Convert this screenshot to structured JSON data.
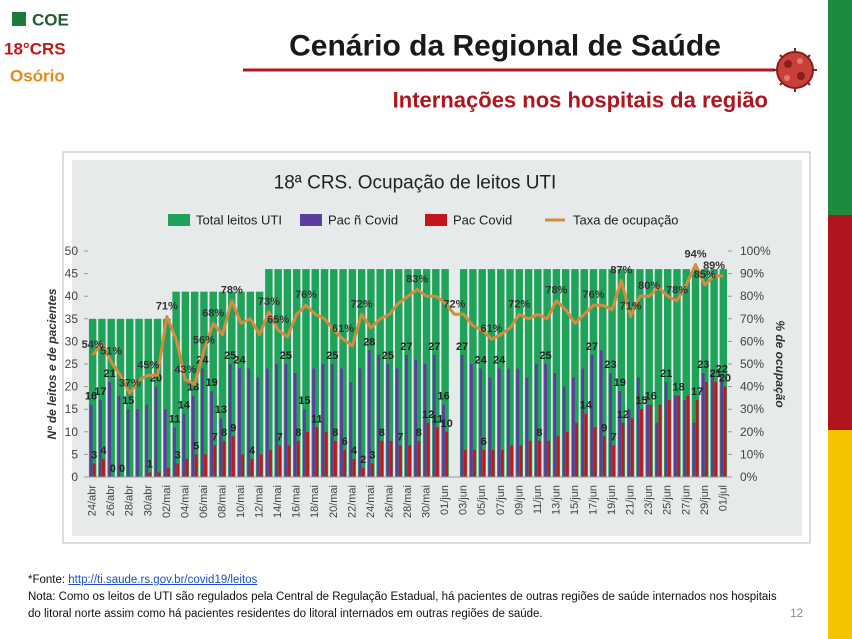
{
  "header": {
    "logo": [
      "COE",
      "18°CRS",
      "Osório"
    ],
    "title": "Cenário da Regional de Saúde",
    "subtitle": "Internações nos hospitais da região"
  },
  "chart_data": {
    "type": "bar",
    "title": "18ª CRS. Ocupação de leitos UTI",
    "y_label": "Nº de leitos e de pacientes",
    "y2_label": "% de ocupação",
    "categories": [
      "24/abr",
      null,
      "26/abr",
      null,
      "28/abr",
      null,
      "30/abr",
      null,
      "02/mai",
      null,
      "04/mai",
      null,
      "06/mai",
      null,
      "08/mai",
      null,
      "10/mai",
      null,
      "12/mai",
      null,
      "14/mai",
      null,
      "16/mai",
      null,
      "18/mai",
      null,
      "20/mai",
      null,
      "22/mai",
      null,
      "24/mai",
      null,
      "26/mai",
      null,
      "28/mai",
      null,
      "30/mai",
      null,
      "01/jun",
      null,
      "03/jun",
      null,
      "05/jun",
      null,
      "07/jun",
      null,
      "09/jun",
      null,
      "11/jun",
      null,
      "13/jun",
      null,
      "15/jun",
      null,
      "17/jun",
      null,
      "19/jun",
      null,
      "21/jun",
      null,
      "23/jun",
      null,
      "25/jun",
      null,
      "27/jun",
      null,
      "29/jun",
      null,
      "01/jul"
    ],
    "series": [
      {
        "name": "Total leitos UTI",
        "type": "bar",
        "color": "#1fa35a",
        "values": [
          35,
          35,
          35,
          35,
          35,
          35,
          35,
          35,
          35,
          41,
          41,
          41,
          41,
          41,
          41,
          41,
          41,
          41,
          41,
          46,
          46,
          46,
          46,
          46,
          46,
          46,
          46,
          46,
          46,
          46,
          46,
          46,
          46,
          46,
          46,
          46,
          46,
          46,
          46,
          null,
          46,
          46,
          46,
          46,
          46,
          46,
          46,
          46,
          46,
          46,
          46,
          46,
          46,
          46,
          46,
          46,
          46,
          46,
          46,
          46,
          46,
          46,
          46,
          46,
          46,
          46,
          46,
          46,
          46
        ]
      },
      {
        "name": "Pac ñ Covid",
        "type": "bar",
        "color": "#5b3d9e",
        "values": [
          16,
          17,
          21,
          18,
          15,
          15,
          16,
          20,
          15,
          11,
          14,
          18,
          24,
          19,
          13,
          25,
          24,
          24,
          22,
          24,
          25,
          25,
          23,
          15,
          24,
          25,
          25,
          24,
          21,
          24,
          28,
          27,
          25,
          24,
          27,
          26,
          25,
          27,
          16,
          null,
          27,
          25,
          24,
          22,
          24,
          24,
          24,
          22,
          25,
          25,
          23,
          20,
          22,
          24,
          27,
          28,
          23,
          19,
          15,
          22,
          16,
          12,
          21,
          18,
          17,
          12,
          23,
          23,
          22
        ],
        "value_labels": [
          "16",
          "17",
          "21",
          null,
          "15",
          null,
          null,
          "20",
          null,
          "11",
          "14",
          "18",
          "24",
          "19",
          "13",
          "25",
          "24",
          null,
          null,
          null,
          null,
          "25",
          null,
          "15",
          null,
          null,
          "25",
          null,
          null,
          null,
          "28",
          null,
          "25",
          null,
          "27",
          null,
          null,
          "27",
          "16",
          null,
          "27",
          null,
          "24",
          null,
          "24",
          null,
          null,
          null,
          null,
          "25",
          null,
          null,
          null,
          null,
          "27",
          null,
          "23",
          "19",
          null,
          null,
          null,
          null,
          "21",
          null,
          null,
          null,
          "23",
          null,
          "22"
        ]
      },
      {
        "name": "Pac Covid",
        "type": "bar",
        "color": "#c4161c",
        "values": [
          3,
          4,
          0,
          0,
          0,
          0,
          1,
          1,
          2,
          3,
          4,
          5,
          5,
          7,
          8,
          9,
          5,
          4,
          5,
          6,
          7,
          7,
          8,
          10,
          11,
          10,
          8,
          6,
          4,
          2,
          3,
          8,
          8,
          7,
          7,
          8,
          12,
          11,
          10,
          null,
          6,
          6,
          6,
          6,
          6,
          7,
          7,
          8,
          8,
          8,
          9,
          10,
          12,
          14,
          11,
          9,
          7,
          12,
          13,
          15,
          16,
          16,
          17,
          18,
          18,
          17,
          21,
          21,
          20
        ],
        "value_labels": [
          "3",
          "4",
          "0",
          "0",
          null,
          null,
          "1",
          null,
          null,
          "3",
          null,
          "5",
          null,
          "7",
          "8",
          "9",
          null,
          "4",
          null,
          null,
          "7",
          null,
          "8",
          null,
          "11",
          null,
          "8",
          "6",
          "4",
          "2",
          "3",
          "8",
          null,
          "7",
          null,
          "8",
          "12",
          "11",
          "10",
          null,
          null,
          null,
          "6",
          null,
          null,
          null,
          null,
          null,
          "8",
          null,
          null,
          null,
          null,
          "14",
          null,
          "9",
          "7",
          "12",
          null,
          "15",
          "16",
          null,
          null,
          "18",
          null,
          "17",
          null,
          "21",
          "20"
        ]
      },
      {
        "name": "Taxa de ocupação",
        "type": "line",
        "axis": "y2",
        "color": "#d38b3f",
        "values": [
          54,
          59,
          51,
          45,
          37,
          43,
          45,
          45,
          71,
          61,
          43,
          41,
          56,
          68,
          63,
          78,
          68,
          70,
          63,
          73,
          65,
          62,
          72,
          76,
          72,
          70,
          65,
          61,
          58,
          72,
          66,
          70,
          72,
          77,
          80,
          83,
          80,
          80,
          77,
          72,
          72,
          67,
          65,
          61,
          63,
          66,
          72,
          70,
          72,
          70,
          78,
          74,
          68,
          72,
          76,
          76,
          74,
          87,
          71,
          80,
          80,
          84,
          80,
          78,
          85,
          94,
          85,
          89,
          89
        ],
        "value_labels": [
          "54%",
          null,
          "51%",
          null,
          "37%",
          null,
          "45%",
          null,
          "71%",
          null,
          "43%",
          null,
          "56%",
          "68%",
          null,
          "78%",
          null,
          null,
          null,
          "73%",
          "65%",
          null,
          null,
          "76%",
          null,
          null,
          null,
          "61%",
          null,
          "72%",
          null,
          null,
          null,
          null,
          null,
          "83%",
          null,
          null,
          null,
          "72%",
          null,
          null,
          null,
          "61%",
          null,
          null,
          "72%",
          null,
          null,
          null,
          "78%",
          null,
          null,
          null,
          "76%",
          null,
          null,
          "87%",
          "71%",
          null,
          "80%",
          null,
          null,
          "78%",
          null,
          "94%",
          "85%",
          "89%",
          null
        ]
      }
    ],
    "ylim": [
      0,
      50
    ],
    "yticks": [
      0,
      5,
      10,
      15,
      20,
      25,
      30,
      35,
      40,
      45,
      50
    ],
    "y2lim": [
      0,
      100
    ],
    "y2ticks": [
      {
        "value": 0,
        "label": "0%"
      },
      {
        "value": 10,
        "label": "10%"
      },
      {
        "value": 20,
        "label": "20%"
      },
      {
        "value": 30,
        "label": "30%"
      },
      {
        "value": 40,
        "label": "40%"
      },
      {
        "value": 50,
        "label": "50%"
      },
      {
        "value": 60,
        "label": "60%"
      },
      {
        "value": 70,
        "label": "70%"
      },
      {
        "value": 80,
        "label": "80%"
      },
      {
        "value": 90,
        "label": "90%"
      },
      {
        "value": 100,
        "label": "100%"
      }
    ],
    "legend": "top"
  },
  "footer": {
    "source_prefix": "*Fonte: ",
    "source_link": "http://ti.saude.rs.gov.br/covid19/leitos",
    "note": " Nota: Como os leitos de UTI são regulados pela Central de Regulação Estadual, há pacientes de outras regiões de saúde internados nos hospitais do litoral norte  assim como há pacientes residentes do litoral internados em outras regiões de saúde.",
    "page": "12"
  }
}
